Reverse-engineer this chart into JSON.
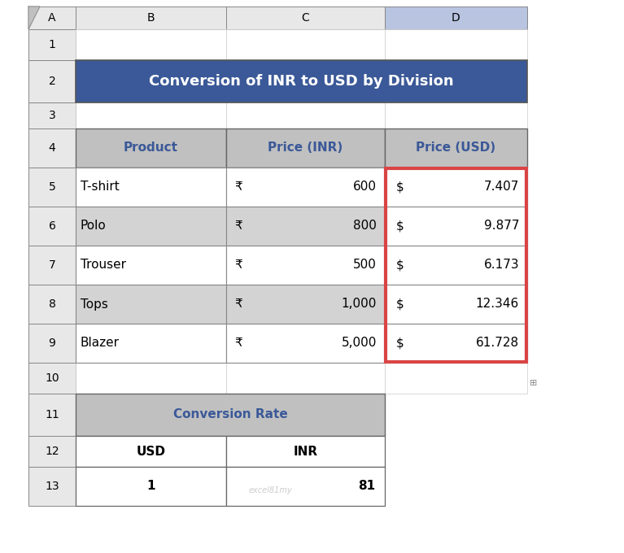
{
  "title": "Conversion of INR to USD by Division",
  "title_bg": "#3B5998",
  "title_color": "#FFFFFF",
  "header_bg": "#C0C0C0",
  "header_color": "#3B5998",
  "row_bg_white": "#FFFFFF",
  "row_bg_gray": "#D3D3D3",
  "grid_color": "#888888",
  "col_headers": [
    "Product",
    "Price (INR)",
    "Price (USD)"
  ],
  "products": [
    "T-shirt",
    "Polo",
    "Trouser",
    "Tops",
    "Blazer"
  ],
  "inr_values": [
    "600",
    "800",
    "500",
    "1,000",
    "5,000"
  ],
  "usd_values": [
    "7.407",
    "9.877",
    "6.173",
    "12.346",
    "61.728"
  ],
  "conversion_title": "Conversion Rate",
  "conv_headers": [
    "USD",
    "INR"
  ],
  "conv_values": [
    "1",
    "81"
  ],
  "excel_col_headers": [
    "A",
    "B",
    "C",
    "D"
  ],
  "excel_row_headers": [
    "1",
    "2",
    "3",
    "4",
    "5",
    "6",
    "7",
    "8",
    "9",
    "10",
    "11",
    "12",
    "13"
  ],
  "col_header_bg": "#E8E8E8",
  "row_header_bg": "#E8E8E8",
  "usd_highlight_border": "#D94444",
  "d_col_bg": "#B8C4E0",
  "rupee_symbol": "₹",
  "dollar_symbol": "$",
  "watermark_text": "excel81my",
  "watermark_color": "#AAAAAA"
}
